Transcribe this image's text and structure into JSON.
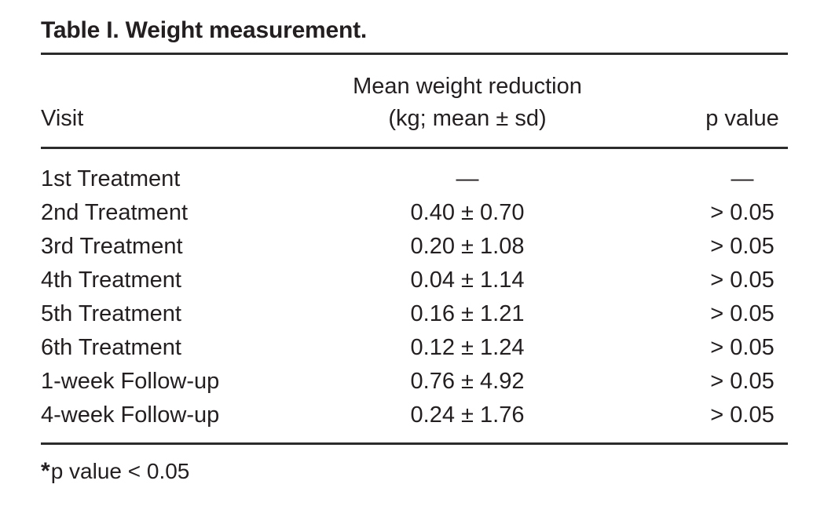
{
  "page": {
    "background": "#ffffff",
    "text_color": "#231f20",
    "rule_color": "#2b2b2b"
  },
  "table": {
    "title": "Table I. Weight measurement.",
    "header": {
      "visit": "Visit",
      "mean_line1": "Mean weight reduction",
      "mean_line2": "(kg; mean ± sd)",
      "p_value": "p value"
    },
    "rows": [
      {
        "visit": "1st Treatment",
        "mean": "—",
        "p": "—"
      },
      {
        "visit": "2nd Treatment",
        "mean": "0.40 ± 0.70",
        "p": "> 0.05"
      },
      {
        "visit": "3rd Treatment",
        "mean": "0.20 ± 1.08",
        "p": "> 0.05"
      },
      {
        "visit": "4th Treatment",
        "mean": "0.04 ± 1.14",
        "p": "> 0.05"
      },
      {
        "visit": "5th Treatment",
        "mean": "0.16 ± 1.21",
        "p": "> 0.05"
      },
      {
        "visit": "6th Treatment",
        "mean": "0.12 ± 1.24",
        "p": "> 0.05"
      },
      {
        "visit": "1-week Follow-up",
        "mean": "0.76 ± 4.92",
        "p": "> 0.05"
      },
      {
        "visit": "4-week Follow-up",
        "mean": "0.24 ± 1.76",
        "p": "> 0.05"
      }
    ],
    "footnote": {
      "marker": "*",
      "text": "p value < 0.05"
    }
  }
}
